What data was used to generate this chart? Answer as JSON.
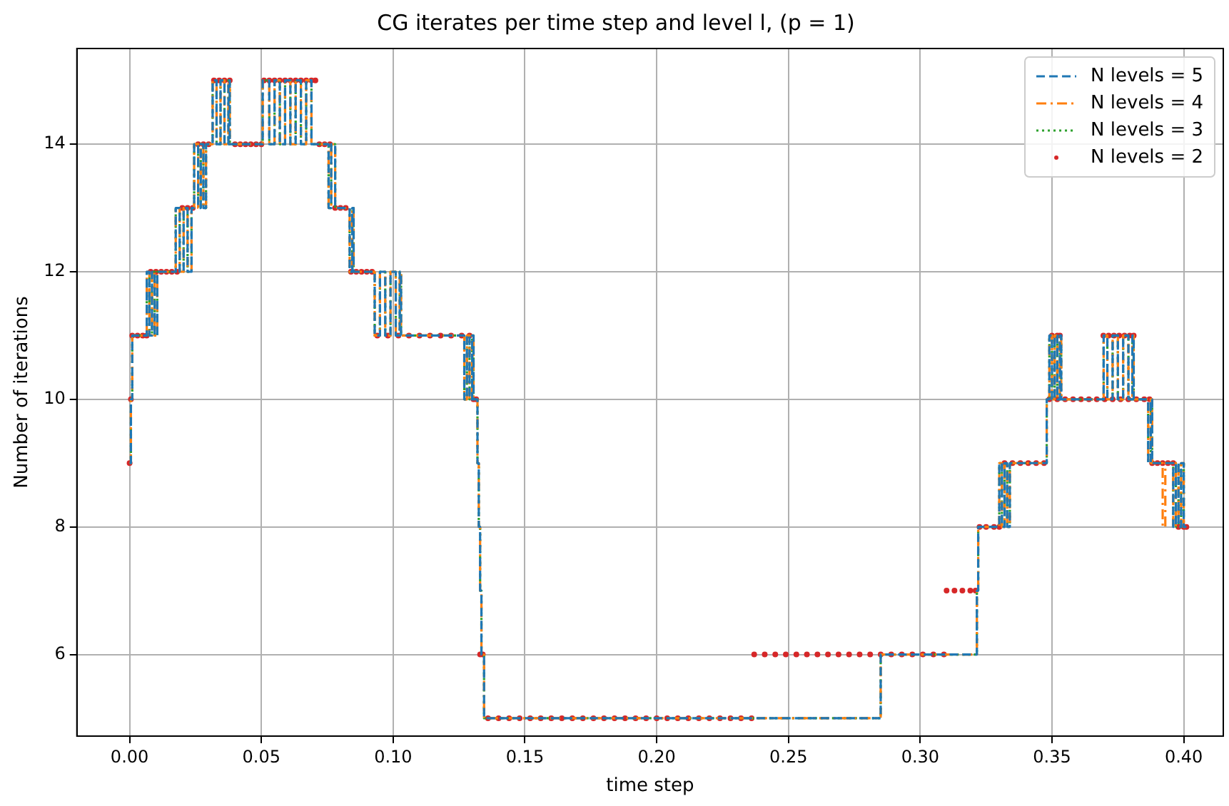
{
  "chart_data": {
    "type": "step",
    "title": "CG iterates per time step and level l, (p = 1)",
    "xlabel": "time step",
    "ylabel": "Number of iterations",
    "xlim": [
      -0.02,
      0.415
    ],
    "ylim": [
      4.72,
      15.5
    ],
    "xticks": [
      {
        "value": 0,
        "label": "0.00"
      },
      {
        "value": 0.05,
        "label": "0.05"
      },
      {
        "value": 0.1,
        "label": "0.10"
      },
      {
        "value": 0.15,
        "label": "0.15"
      },
      {
        "value": 0.2,
        "label": "0.20"
      },
      {
        "value": 0.25,
        "label": "0.25"
      },
      {
        "value": 0.3,
        "label": "0.30"
      },
      {
        "value": 0.35,
        "label": "0.35"
      },
      {
        "value": 0.4,
        "label": "0.40"
      }
    ],
    "yticks": [
      6,
      8,
      10,
      12,
      14
    ],
    "grid": true,
    "legend": "top right",
    "marker": "none",
    "series": [
      {
        "name": "N levels = 5",
        "color": "#1f77b4",
        "line_style": "dashed",
        "x": [
          0,
          0.0005,
          0.001,
          0.0065,
          0.0075,
          0.0085,
          0.0095,
          0.0105,
          0.0175,
          0.019,
          0.0205,
          0.022,
          0.0235,
          0.0245,
          0.026,
          0.027,
          0.028,
          0.029,
          0.0315,
          0.033,
          0.0345,
          0.036,
          0.0375,
          0.038,
          0.0505,
          0.053,
          0.055,
          0.057,
          0.059,
          0.061,
          0.063,
          0.065,
          0.067,
          0.069,
          0.0707,
          0.0755,
          0.0765,
          0.078,
          0.0835,
          0.0845,
          0.085,
          0.093,
          0.095,
          0.097,
          0.099,
          0.101,
          0.1025,
          0.103,
          0.127,
          0.128,
          0.129,
          0.13,
          0.1305,
          0.132,
          0.1325,
          0.133,
          0.1335,
          0.1345,
          0.285,
          0.3215,
          0.322,
          0.33,
          0.331,
          0.332,
          0.333,
          0.334,
          0.348,
          0.349,
          0.35,
          0.351,
          0.352,
          0.353,
          0.3535,
          0.3696,
          0.371,
          0.373,
          0.375,
          0.377,
          0.379,
          0.3805,
          0.381,
          0.3865,
          0.3875,
          0.388,
          0.396,
          0.397,
          0.398,
          0.399,
          0.4,
          0.401
        ],
        "values": [
          9,
          10,
          11,
          12,
          11,
          12,
          11,
          12,
          13,
          12,
          13,
          12,
          13,
          14,
          13,
          14,
          13,
          14,
          15,
          14,
          15,
          14,
          15,
          14,
          15,
          14,
          15,
          14,
          15,
          14,
          15,
          14,
          15,
          14,
          14,
          13,
          14,
          13,
          12,
          13,
          12,
          11,
          12,
          11,
          12,
          11,
          12,
          11,
          10,
          11,
          10,
          11,
          10,
          9,
          8,
          7,
          6,
          5,
          6,
          7,
          8,
          9,
          8,
          9,
          8,
          9,
          10,
          11,
          10,
          11,
          10,
          11,
          10,
          11,
          10,
          11,
          10,
          11,
          10,
          11,
          10,
          9,
          10,
          9,
          8,
          9,
          8,
          9,
          8,
          8
        ]
      },
      {
        "name": "N levels = 4",
        "color": "#ff7f0e",
        "line_style": "dashdot",
        "x": [
          0,
          0.0005,
          0.001,
          0.0065,
          0.0075,
          0.0085,
          0.0095,
          0.0105,
          0.0175,
          0.019,
          0.0205,
          0.022,
          0.0235,
          0.0245,
          0.026,
          0.027,
          0.028,
          0.029,
          0.0315,
          0.033,
          0.0345,
          0.036,
          0.0375,
          0.038,
          0.0505,
          0.053,
          0.055,
          0.057,
          0.059,
          0.061,
          0.063,
          0.065,
          0.067,
          0.069,
          0.0707,
          0.0755,
          0.0765,
          0.078,
          0.0835,
          0.0845,
          0.085,
          0.093,
          0.095,
          0.097,
          0.099,
          0.101,
          0.1025,
          0.103,
          0.127,
          0.128,
          0.129,
          0.13,
          0.1305,
          0.132,
          0.1325,
          0.133,
          0.1335,
          0.1345,
          0.285,
          0.3215,
          0.322,
          0.33,
          0.331,
          0.332,
          0.333,
          0.334,
          0.348,
          0.349,
          0.35,
          0.351,
          0.352,
          0.353,
          0.3535,
          0.3696,
          0.371,
          0.373,
          0.375,
          0.377,
          0.379,
          0.3805,
          0.381,
          0.3865,
          0.3875,
          0.388,
          0.392,
          0.393,
          0.396,
          0.397,
          0.398,
          0.399,
          0.4,
          0.401
        ],
        "values": [
          9,
          10,
          11,
          12,
          11,
          12,
          11,
          12,
          13,
          12,
          13,
          12,
          13,
          14,
          13,
          14,
          13,
          14,
          15,
          14,
          15,
          14,
          15,
          14,
          15,
          14,
          15,
          14,
          15,
          14,
          15,
          14,
          15,
          14,
          14,
          13,
          14,
          13,
          12,
          13,
          12,
          11,
          12,
          11,
          12,
          11,
          12,
          11,
          10,
          11,
          10,
          11,
          10,
          9,
          8,
          7,
          6,
          5,
          6,
          7,
          8,
          9,
          8,
          9,
          8,
          9,
          10,
          11,
          10,
          11,
          10,
          11,
          10,
          11,
          10,
          11,
          10,
          11,
          10,
          11,
          10,
          9,
          10,
          9,
          8,
          9,
          8,
          9,
          8,
          9,
          8,
          8
        ]
      },
      {
        "name": "N levels = 3",
        "color": "#2ca02c",
        "line_style": "dotted",
        "x": [
          0,
          0.0005,
          0.001,
          0.0065,
          0.0075,
          0.0085,
          0.0095,
          0.0105,
          0.0175,
          0.019,
          0.0205,
          0.022,
          0.0235,
          0.0245,
          0.026,
          0.027,
          0.028,
          0.029,
          0.0315,
          0.033,
          0.0345,
          0.036,
          0.0375,
          0.038,
          0.0505,
          0.053,
          0.055,
          0.057,
          0.059,
          0.061,
          0.063,
          0.065,
          0.067,
          0.069,
          0.0707,
          0.0755,
          0.0765,
          0.078,
          0.0835,
          0.0845,
          0.085,
          0.093,
          0.095,
          0.097,
          0.099,
          0.101,
          0.1025,
          0.103,
          0.127,
          0.128,
          0.129,
          0.13,
          0.1305,
          0.132,
          0.1325,
          0.133,
          0.1335,
          0.1345,
          0.285,
          0.3215,
          0.322,
          0.33,
          0.331,
          0.332,
          0.333,
          0.334,
          0.348,
          0.349,
          0.35,
          0.351,
          0.352,
          0.353,
          0.3535,
          0.3696,
          0.371,
          0.373,
          0.375,
          0.377,
          0.379,
          0.3805,
          0.381,
          0.3865,
          0.3875,
          0.388,
          0.396,
          0.397,
          0.398,
          0.399,
          0.4,
          0.401
        ],
        "values": [
          9,
          10,
          11,
          12,
          11,
          12,
          11,
          12,
          13,
          12,
          13,
          12,
          13,
          14,
          13,
          14,
          13,
          14,
          15,
          14,
          15,
          14,
          15,
          14,
          15,
          14,
          15,
          14,
          15,
          14,
          15,
          14,
          15,
          14,
          14,
          13,
          14,
          13,
          12,
          13,
          12,
          11,
          12,
          11,
          12,
          11,
          12,
          11,
          10,
          11,
          10,
          11,
          10,
          9,
          8,
          7,
          6,
          5,
          6,
          7,
          8,
          9,
          8,
          9,
          8,
          9,
          10,
          11,
          10,
          11,
          10,
          11,
          10,
          11,
          10,
          11,
          10,
          11,
          10,
          11,
          10,
          9,
          10,
          9,
          8,
          9,
          8,
          9,
          8,
          8
        ]
      },
      {
        "name": "N levels = 2",
        "color": "#d62728",
        "type": "scatter",
        "marker": "circle",
        "x": [
          0,
          0.0005,
          0.001,
          0.003,
          0.005,
          0.0065,
          0.008,
          0.01,
          0.012,
          0.014,
          0.016,
          0.018,
          0.02,
          0.022,
          0.024,
          0.026,
          0.028,
          0.03,
          0.032,
          0.034,
          0.036,
          0.038,
          0.04,
          0.042,
          0.044,
          0.046,
          0.048,
          0.05,
          0.051,
          0.053,
          0.055,
          0.057,
          0.059,
          0.061,
          0.063,
          0.065,
          0.067,
          0.069,
          0.0705,
          0.072,
          0.074,
          0.076,
          0.078,
          0.08,
          0.082,
          0.084,
          0.086,
          0.088,
          0.09,
          0.092,
          0.094,
          0.098,
          0.102,
          0.106,
          0.11,
          0.114,
          0.118,
          0.122,
          0.126,
          0.129,
          0.1305,
          0.1315,
          0.133,
          0.134,
          0.136,
          0.14,
          0.144,
          0.148,
          0.152,
          0.156,
          0.16,
          0.164,
          0.168,
          0.172,
          0.176,
          0.18,
          0.184,
          0.188,
          0.192,
          0.196,
          0.2,
          0.204,
          0.208,
          0.212,
          0.216,
          0.22,
          0.224,
          0.228,
          0.232,
          0.236,
          0.237,
          0.241,
          0.245,
          0.249,
          0.253,
          0.257,
          0.261,
          0.265,
          0.269,
          0.273,
          0.277,
          0.281,
          0.285,
          0.289,
          0.293,
          0.297,
          0.301,
          0.305,
          0.309,
          0.31,
          0.313,
          0.316,
          0.319,
          0.321,
          0.3225,
          0.325,
          0.328,
          0.33,
          0.332,
          0.335,
          0.338,
          0.341,
          0.344,
          0.347,
          0.349,
          0.352,
          0.355,
          0.358,
          0.361,
          0.364,
          0.367,
          0.37,
          0.373,
          0.376,
          0.379,
          0.382,
          0.385,
          0.387,
          0.35,
          0.352,
          0.353,
          0.3695,
          0.3715,
          0.3735,
          0.3755,
          0.3775,
          0.3795,
          0.381,
          0.388,
          0.39,
          0.392,
          0.394,
          0.396,
          0.398,
          0.4,
          0.401
        ],
        "values": [
          9,
          10,
          11,
          11,
          11,
          11,
          12,
          12,
          12,
          12,
          12,
          12,
          13,
          13,
          13,
          14,
          14,
          14,
          15,
          15,
          15,
          15,
          14,
          14,
          14,
          14,
          14,
          14,
          15,
          15,
          15,
          15,
          15,
          15,
          15,
          15,
          15,
          15,
          15,
          14,
          14,
          14,
          13,
          13,
          13,
          12,
          12,
          12,
          12,
          12,
          11,
          11,
          11,
          11,
          11,
          11,
          11,
          11,
          11,
          11,
          10,
          10,
          6,
          6,
          5,
          5,
          5,
          5,
          5,
          5,
          5,
          5,
          5,
          5,
          5,
          5,
          5,
          5,
          5,
          5,
          5,
          5,
          5,
          5,
          5,
          5,
          5,
          5,
          5,
          5,
          6,
          6,
          6,
          6,
          6,
          6,
          6,
          6,
          6,
          6,
          6,
          6,
          6,
          6,
          6,
          6,
          6,
          6,
          6,
          7,
          7,
          7,
          7,
          7,
          8,
          8,
          8,
          8,
          9,
          9,
          9,
          9,
          9,
          9,
          10,
          10,
          10,
          10,
          10,
          10,
          10,
          10,
          10,
          10,
          10,
          10,
          10,
          10,
          11,
          11,
          11,
          11,
          11,
          11,
          11,
          11,
          11,
          11,
          9,
          9,
          9,
          9,
          9,
          8,
          8,
          8
        ]
      }
    ]
  }
}
